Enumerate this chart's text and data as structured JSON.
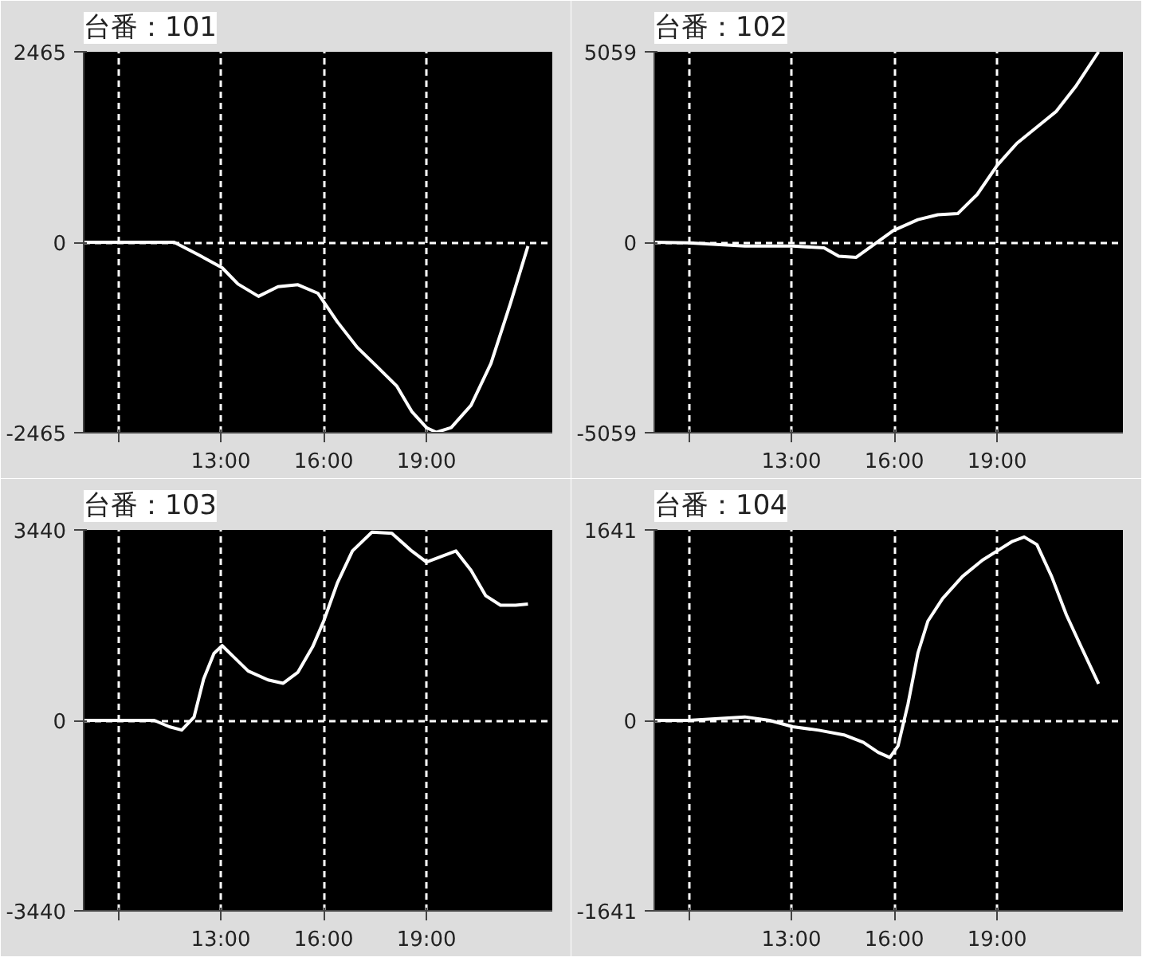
{
  "chart_data": [
    {
      "type": "line",
      "title": "台番：101",
      "xlim": [
        9,
        22.67
      ],
      "ylim": [
        -2465,
        2465
      ],
      "grid": true,
      "line_style": "solid",
      "xticks": [
        {
          "value": 10,
          "label": null
        },
        {
          "value": 13,
          "label": "13:00"
        },
        {
          "value": 16,
          "label": "16:00"
        },
        {
          "value": 19,
          "label": "19:00"
        }
      ],
      "yticks": [
        -2465,
        0,
        2465
      ],
      "x": [
        9,
        10,
        11.64,
        12.36,
        13.04,
        13.5,
        14.1,
        14.67,
        15.25,
        15.83,
        16.4,
        16.98,
        17.56,
        18.13,
        18.57,
        19,
        19.29,
        19.72,
        20.3,
        20.88,
        21.45,
        21.96
      ],
      "series": [
        {
          "color": "#ffffff",
          "values": [
            0,
            0,
            0,
            -165,
            -330,
            -540,
            -700,
            -575,
            -550,
            -660,
            -1030,
            -1360,
            -1610,
            -1860,
            -2190,
            -2400,
            -2460,
            -2400,
            -2110,
            -1570,
            -790,
            -50
          ]
        }
      ]
    },
    {
      "type": "line",
      "title": "台番：102",
      "xlim": [
        9,
        22.67
      ],
      "ylim": [
        -5059,
        5059
      ],
      "grid": true,
      "line_style": "solid",
      "xticks": [
        {
          "value": 10,
          "label": null
        },
        {
          "value": 13,
          "label": "13:00"
        },
        {
          "value": 16,
          "label": "16:00"
        },
        {
          "value": 19,
          "label": "19:00"
        }
      ],
      "yticks": [
        -5059,
        0,
        5059
      ],
      "x": [
        9,
        10,
        11.64,
        13.04,
        13.95,
        14.38,
        14.89,
        15.39,
        15.97,
        16.69,
        17.27,
        17.85,
        18.42,
        19,
        19.58,
        20.16,
        20.73,
        21.31,
        21.96
      ],
      "series": [
        {
          "color": "#ffffff",
          "values": [
            0,
            -15,
            -100,
            -100,
            -150,
            -370,
            -400,
            -70,
            310,
            600,
            730,
            760,
            1270,
            2040,
            2630,
            3060,
            3480,
            4160,
            5059
          ]
        }
      ]
    },
    {
      "type": "line",
      "title": "台番：103",
      "xlim": [
        9,
        22.67
      ],
      "ylim": [
        -3440,
        3440
      ],
      "grid": true,
      "line_style": "solid",
      "xticks": [
        {
          "value": 10,
          "label": null
        },
        {
          "value": 13,
          "label": "13:00"
        },
        {
          "value": 16,
          "label": "16:00"
        },
        {
          "value": 19,
          "label": "19:00"
        }
      ],
      "yticks": [
        -3440,
        0,
        3440
      ],
      "x": [
        9,
        10,
        11.06,
        11.5,
        11.86,
        12.22,
        12.5,
        12.8,
        13.04,
        13.37,
        13.8,
        14.38,
        14.82,
        15.25,
        15.68,
        16,
        16.4,
        16.84,
        17.41,
        17.99,
        18.57,
        19,
        19.43,
        19.86,
        20.3,
        20.73,
        21.16,
        21.6,
        21.96
      ],
      "series": [
        {
          "color": "#ffffff",
          "values": [
            0,
            0,
            0,
            -115,
            -175,
            60,
            750,
            1210,
            1350,
            1150,
            890,
            730,
            670,
            870,
            1330,
            1790,
            2480,
            3060,
            3400,
            3380,
            3060,
            2860,
            2960,
            3060,
            2710,
            2250,
            2080,
            2080,
            2100
          ]
        }
      ]
    },
    {
      "type": "line",
      "title": "台番：104",
      "xlim": [
        9,
        22.67
      ],
      "ylim": [
        -1641,
        1641
      ],
      "grid": true,
      "line_style": "solid",
      "xticks": [
        {
          "value": 10,
          "label": null
        },
        {
          "value": 13,
          "label": "13:00"
        },
        {
          "value": 16,
          "label": "16:00"
        },
        {
          "value": 19,
          "label": "19:00"
        }
      ],
      "yticks": [
        -1641,
        0,
        1641
      ],
      "x": [
        9,
        10,
        11.64,
        12.36,
        13.04,
        13.8,
        14.53,
        15.1,
        15.53,
        15.87,
        16.11,
        16.4,
        16.69,
        16.98,
        17.41,
        17.99,
        18.57,
        19,
        19.43,
        19.79,
        20.16,
        20.59,
        21.02,
        21.45,
        21.96
      ],
      "series": [
        {
          "color": "#ffffff",
          "values": [
            0,
            0,
            30,
            0,
            -55,
            -85,
            -125,
            -190,
            -275,
            -320,
            -220,
            140,
            580,
            855,
            1050,
            1240,
            1380,
            1460,
            1540,
            1580,
            1515,
            1240,
            910,
            635,
            315
          ]
        }
      ]
    }
  ]
}
